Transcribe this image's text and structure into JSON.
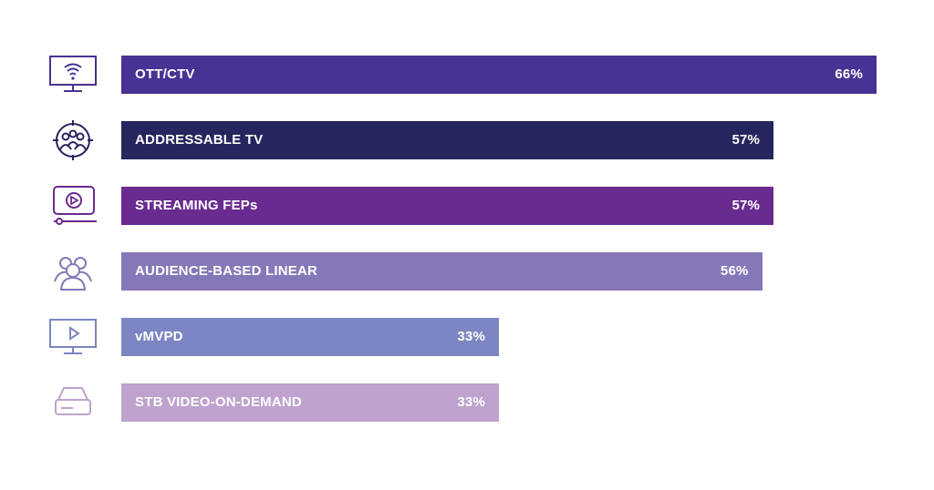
{
  "chart_data": {
    "type": "bar",
    "orientation": "horizontal",
    "title": "",
    "xlabel": "",
    "ylabel": "",
    "xlim": [
      0,
      66
    ],
    "grid": false,
    "legend": "none",
    "categories": [
      "OTT/CTV",
      "ADDRESSABLE TV",
      "STREAMING FEPs",
      "AUDIENCE-BASED LINEAR",
      "vMVPD",
      "STB VIDEO-ON-DEMAND"
    ],
    "values": [
      66,
      57,
      57,
      56,
      33,
      33
    ],
    "value_labels": [
      "66%",
      "57%",
      "57%",
      "56%",
      "33%",
      "33%"
    ],
    "colors": [
      "#483293",
      "#27255e",
      "#6a2b90",
      "#8678b8",
      "#7b86c2",
      "#bfa2ce"
    ],
    "icons": [
      "wifi-tv-icon",
      "audience-target-icon",
      "video-player-icon",
      "audience-group-icon",
      "tv-play-icon",
      "set-top-box-icon"
    ],
    "icon_colors": [
      "#483293",
      "#27255e",
      "#6a2b90",
      "#8678b8",
      "#7b86c2",
      "#bfa2ce"
    ]
  }
}
